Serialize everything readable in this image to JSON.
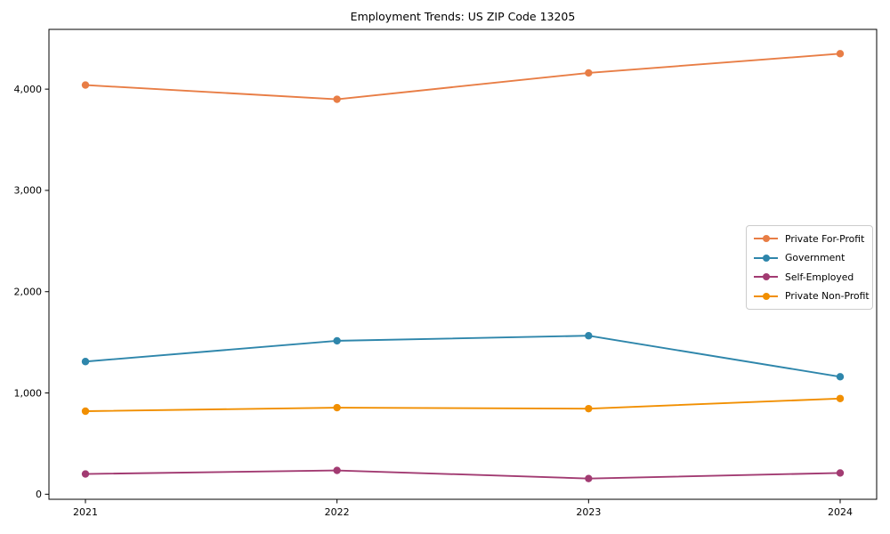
{
  "title": "Employment Trends: US ZIP Code 13205",
  "chart_data": {
    "type": "line",
    "title": "Employment Trends: US ZIP Code 13205",
    "xlabel": "",
    "ylabel": "",
    "x": [
      2021,
      2022,
      2023,
      2024
    ],
    "x_tick_labels": [
      "2021",
      "2022",
      "2023",
      "2024"
    ],
    "series": [
      {
        "name": "Private For-Profit",
        "color": "#E87D45",
        "values": [
          4040,
          3900,
          4160,
          4350
        ]
      },
      {
        "name": "Government",
        "color": "#2E86AB",
        "values": [
          1310,
          1515,
          1565,
          1160
        ]
      },
      {
        "name": "Self-Employed",
        "color": "#A23B72",
        "values": [
          200,
          235,
          155,
          210
        ]
      },
      {
        "name": "Private Non-Profit",
        "color": "#F18F01",
        "values": [
          820,
          855,
          845,
          945
        ]
      }
    ],
    "yticks": [
      0,
      1000,
      2000,
      3000,
      4000
    ],
    "ytick_labels": [
      "0",
      "1,000",
      "2,000",
      "3,000",
      "4,000"
    ],
    "ylim": [
      -50,
      4590
    ],
    "grid": false,
    "legend_position": "center-right",
    "marker": "circle",
    "frame": true
  }
}
